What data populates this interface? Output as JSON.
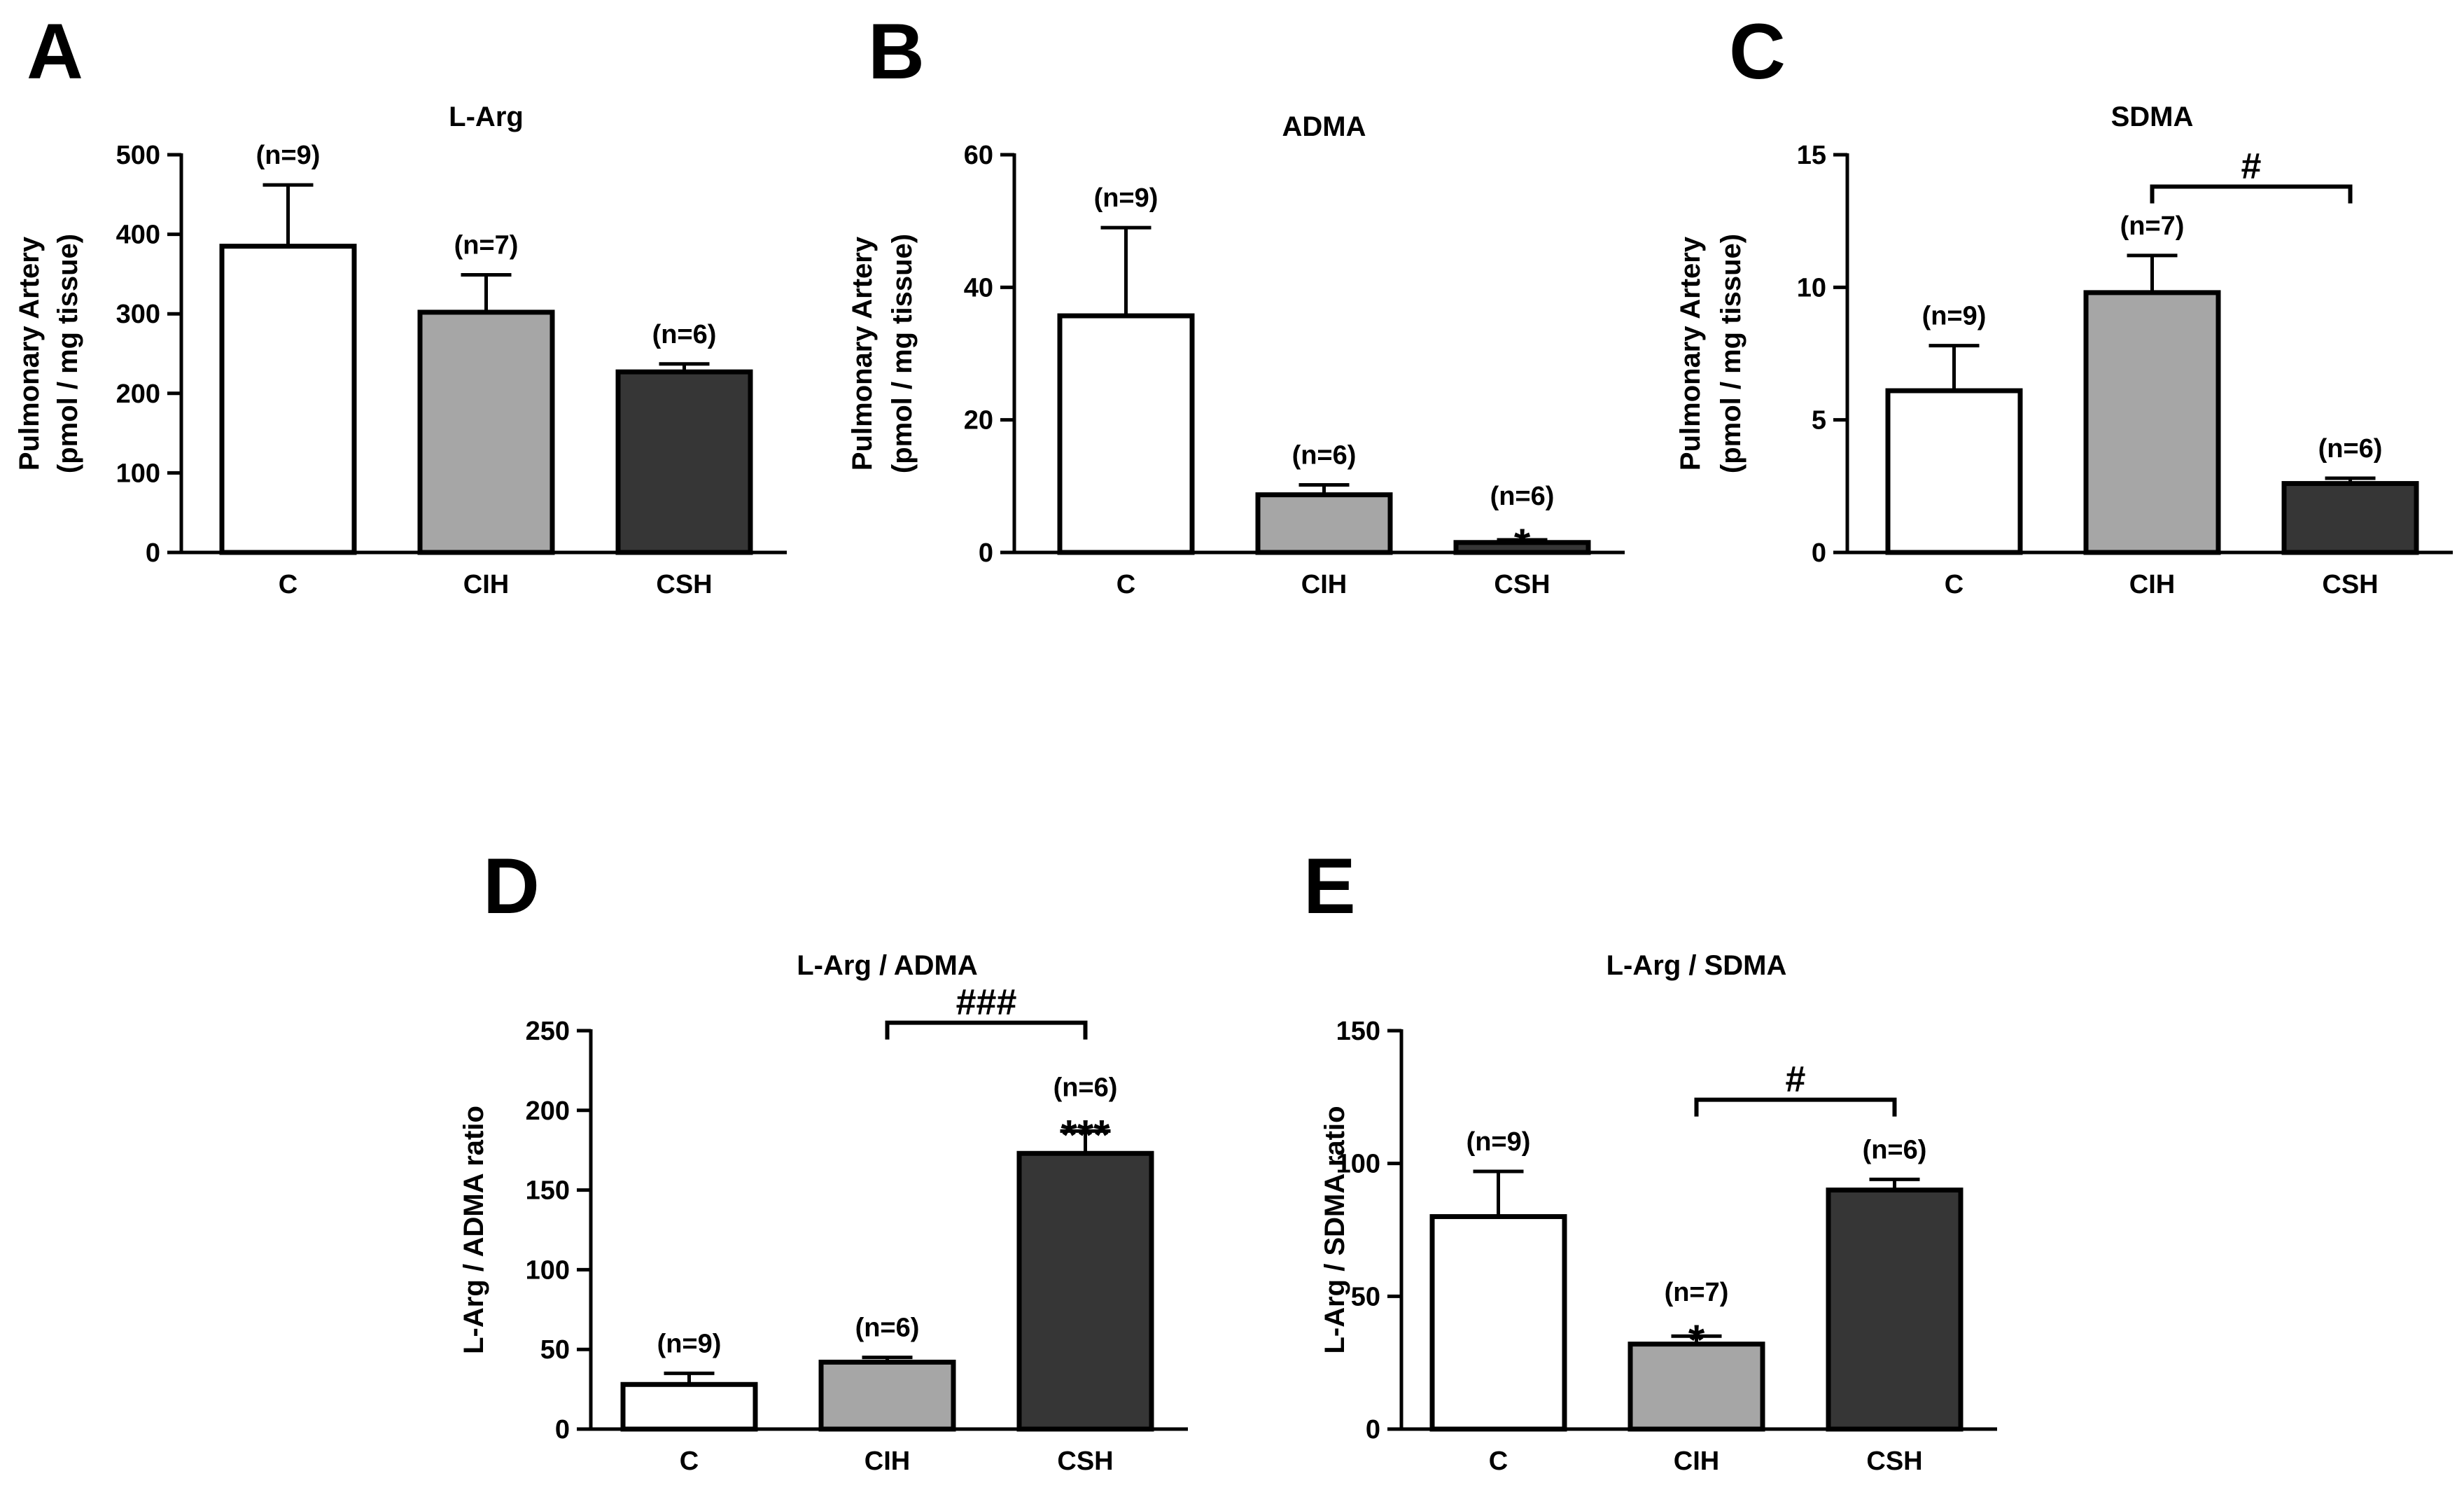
{
  "figure": {
    "colors": {
      "C": "#ffffff",
      "CIH": "#a6a6a6",
      "CSH": "#363636",
      "axis": "#000000"
    },
    "panels": [
      "A",
      "B",
      "C",
      "D",
      "E"
    ]
  },
  "chart_data": [
    {
      "panel": "A",
      "type": "bar",
      "title": "L-Arg",
      "ylabel": [
        "Pulmonary Artery",
        "(pmol / mg tissue)"
      ],
      "xlabel": "",
      "categories": [
        "C",
        "CIH",
        "CSH"
      ],
      "values": [
        385,
        302,
        227
      ],
      "errors": [
        77,
        47,
        10
      ],
      "n_labels": [
        "(n=9)",
        "(n=7)",
        "(n=6)"
      ],
      "stars": [
        "",
        "",
        ""
      ],
      "ylim": [
        0,
        500
      ],
      "yticks": [
        0,
        100,
        200,
        300,
        400,
        500
      ],
      "comparison": null
    },
    {
      "panel": "B",
      "type": "bar",
      "title": "ADMA",
      "ylabel": [
        "Pulmonary Artery",
        "(pmol / mg tissue)"
      ],
      "xlabel": "",
      "categories": [
        "C",
        "CIH",
        "CSH"
      ],
      "values": [
        35.7,
        8.7,
        1.5
      ],
      "errors": [
        13.3,
        1.5,
        0.4
      ],
      "n_labels": [
        "(n=9)",
        "(n=6)",
        "(n=6)"
      ],
      "stars": [
        "",
        "",
        "*"
      ],
      "ylim": [
        0,
        60
      ],
      "yticks": [
        0,
        20,
        40,
        60
      ],
      "comparison": null
    },
    {
      "panel": "C",
      "type": "bar",
      "title": "SDMA",
      "ylabel": [
        "Pulmonary Artery",
        "(pmol / mg tissue)"
      ],
      "xlabel": "",
      "categories": [
        "C",
        "CIH",
        "CSH"
      ],
      "values": [
        6.1,
        9.8,
        2.6
      ],
      "errors": [
        1.7,
        1.4,
        0.2
      ],
      "n_labels": [
        "(n=9)",
        "(n=7)",
        "(n=6)"
      ],
      "stars": [
        "",
        "",
        ""
      ],
      "ylim": [
        0,
        15
      ],
      "yticks": [
        0,
        5,
        10,
        15
      ],
      "comparison": {
        "from": 1,
        "to": 2,
        "y": 13.8,
        "label": "#"
      }
    },
    {
      "panel": "D",
      "type": "bar",
      "title": "L-Arg / ADMA",
      "ylabel": [
        "L-Arg / ADMA ratio"
      ],
      "xlabel": "",
      "categories": [
        "C",
        "CIH",
        "CSH"
      ],
      "values": [
        28,
        42,
        173
      ],
      "errors": [
        7,
        3,
        14
      ],
      "n_labels": [
        "(n=9)",
        "(n=6)",
        "(n=6)"
      ],
      "stars": [
        "",
        "",
        "***"
      ],
      "ylim": [
        0,
        250
      ],
      "yticks": [
        0,
        50,
        100,
        150,
        200,
        250
      ],
      "comparison": {
        "from": 1,
        "to": 2,
        "y": 255,
        "label": "###"
      }
    },
    {
      "panel": "E",
      "type": "bar",
      "title": "L-Arg / SDMA",
      "ylabel": [
        "L-Arg / SDMA ratio"
      ],
      "xlabel": "",
      "categories": [
        "C",
        "CIH",
        "CSH"
      ],
      "values": [
        80,
        32,
        90
      ],
      "errors": [
        17,
        3,
        4
      ],
      "n_labels": [
        "(n=9)",
        "(n=7)",
        "(n=6)"
      ],
      "stars": [
        "",
        "*",
        ""
      ],
      "ylim": [
        0,
        150
      ],
      "yticks": [
        0,
        50,
        100,
        150
      ],
      "comparison": {
        "from": 1,
        "to": 2,
        "y": 124,
        "label": "#"
      }
    }
  ]
}
